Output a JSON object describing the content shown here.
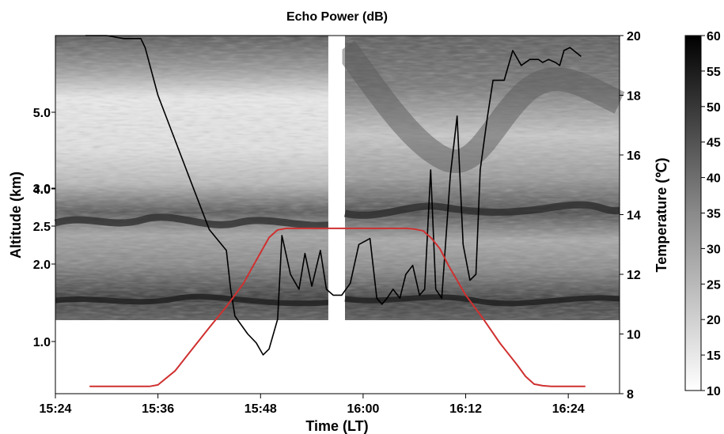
{
  "chart_data": {
    "type": "line",
    "title": "Echo Power (dB)",
    "xlabel": "Time (LT)",
    "ylabel_left": "Altitude (km)",
    "ylabel_right": "Temperature (℃)",
    "x_ticks": [
      "15:24",
      "15:36",
      "15:48",
      "16:00",
      "16:12",
      "16:24"
    ],
    "x_tick_minutes": [
      0,
      12,
      24,
      36,
      48,
      60
    ],
    "x_range_minutes": [
      0,
      66
    ],
    "altitude_ticks": [
      "1.0",
      "2.0",
      "2.5",
      "3.0",
      "4.0",
      "5.0"
    ],
    "altitude_tick_values": [
      1.0,
      2.0,
      2.5,
      3.0,
      4.0,
      5.0
    ],
    "temperature_ticks": [
      "8",
      "10",
      "12",
      "14",
      "16",
      "18",
      "20"
    ],
    "temperature_tick_values": [
      8,
      10,
      12,
      14,
      16,
      18,
      20
    ],
    "temperature_range": [
      8,
      20
    ],
    "colorbar": {
      "ticks": [
        "10",
        "15",
        "20",
        "25",
        "30",
        "35",
        "40",
        "45",
        "50",
        "55",
        "60"
      ],
      "range": [
        10,
        60
      ]
    },
    "data_gap_minutes": [
      32.3,
      33.0
    ],
    "series": [
      {
        "role": "temperature",
        "color": "#000000",
        "x_minutes": [
          3.5,
          6,
          8,
          10,
          10.5,
          12,
          14,
          16,
          18,
          20,
          20.5,
          21,
          22,
          22.5,
          23.5,
          24.3,
          25,
          26,
          26.5,
          27.5,
          28.5,
          29.2,
          30,
          31,
          31.7,
          32.5,
          33.5,
          34.5,
          35.5,
          36.8,
          37.2,
          37.6,
          38.2,
          38.8,
          39.5,
          40.3,
          41,
          41.8,
          42.6,
          43.2,
          43.9,
          44.5,
          45.2,
          46.2,
          47,
          47.7,
          48.5,
          49.2,
          49.7,
          50.5,
          51.2,
          52.5,
          53.5,
          54.5,
          55.5,
          56.5,
          57,
          57.7,
          58.5,
          59,
          59.5,
          60.2,
          61.5
        ],
        "y_celsius": [
          20.0,
          20.0,
          19.9,
          19.9,
          19.6,
          18.0,
          16.5,
          15.0,
          13.5,
          12.8,
          11.5,
          10.6,
          10.2,
          10.0,
          9.7,
          9.3,
          9.5,
          10.5,
          13.3,
          12.0,
          11.5,
          12.7,
          11.6,
          12.8,
          11.5,
          11.3,
          11.3,
          11.7,
          13.0,
          13.2,
          12.2,
          11.2,
          11.0,
          11.2,
          11.5,
          11.2,
          12.0,
          12.3,
          11.3,
          11.5,
          15.5,
          11.5,
          11.2,
          15.3,
          17.3,
          13.0,
          11.8,
          12.0,
          15.5,
          17.2,
          18.5,
          18.5,
          19.5,
          19.0,
          19.2,
          19.2,
          19.1,
          19.2,
          19.1,
          19.0,
          19.5,
          19.6,
          19.3
        ]
      },
      {
        "role": "altitude",
        "color": "#d03030",
        "x_minutes": [
          4,
          6,
          8,
          10,
          11,
          12,
          14,
          16,
          18,
          20,
          22,
          23,
          24,
          25,
          26,
          27,
          28,
          30,
          32,
          34,
          36,
          38,
          40,
          41,
          42,
          43,
          44,
          45,
          46,
          48,
          50,
          52,
          54,
          55,
          56,
          57,
          58,
          59,
          60,
          61,
          62
        ],
        "y_km": [
          0.42,
          0.42,
          0.42,
          0.42,
          0.42,
          0.44,
          0.62,
          0.9,
          1.18,
          1.45,
          1.75,
          1.95,
          2.15,
          2.35,
          2.45,
          2.47,
          2.47,
          2.47,
          2.47,
          2.47,
          2.47,
          2.47,
          2.47,
          2.47,
          2.46,
          2.44,
          2.34,
          2.2,
          1.98,
          1.6,
          1.3,
          0.98,
          0.7,
          0.55,
          0.45,
          0.43,
          0.42,
          0.42,
          0.42,
          0.42,
          0.42
        ]
      }
    ]
  }
}
